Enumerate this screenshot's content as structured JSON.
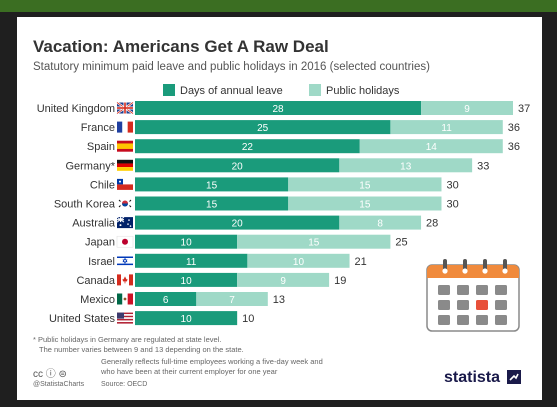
{
  "header": {
    "title": "Vacation: Americans Get A Raw Deal",
    "subtitle": "Statutory minimum paid leave and public holidays in 2016 (selected countries)"
  },
  "colors": {
    "annual_leave": "#1a9b7b",
    "public_holidays": "#9fd9c7",
    "calendar_orange": "#f08a3c",
    "calendar_gray": "#8a8a8a",
    "calendar_red": "#e8503a",
    "brand_navy": "#1a1a4a"
  },
  "chart_data": {
    "type": "bar",
    "orientation": "horizontal",
    "stacked": true,
    "title": "Vacation: Americans Get A Raw Deal",
    "subtitle": "Statutory minimum paid leave and public holidays in 2016 (selected countries)",
    "legend_position": "top",
    "categories": [
      "United Kingdom",
      "France",
      "Spain",
      "Germany*",
      "Chile",
      "South Korea",
      "Australia",
      "Japan",
      "Israel",
      "Canada",
      "Mexico",
      "United States"
    ],
    "flags": [
      "uk",
      "france",
      "spain",
      "germany",
      "chile",
      "south-korea",
      "australia",
      "japan",
      "israel",
      "canada",
      "mexico",
      "united-states"
    ],
    "series": [
      {
        "name": "Days of annual leave",
        "values": [
          28,
          25,
          22,
          20,
          15,
          15,
          20,
          10,
          11,
          10,
          6,
          10
        ]
      },
      {
        "name": "Public holidays",
        "values": [
          9,
          11,
          14,
          13,
          15,
          15,
          8,
          15,
          10,
          9,
          7,
          0
        ]
      }
    ],
    "totals": [
      37,
      36,
      36,
      33,
      30,
      30,
      28,
      25,
      21,
      19,
      13,
      10
    ],
    "xlim": [
      0,
      37
    ],
    "grid": false
  },
  "footer": {
    "footnote_line1": "* Public holidays in Germany are regulated at state level.",
    "footnote_line2": "The number varies between 9 and 13 depending on the state.",
    "note_line1": "Generally reflects full-time employees working a five-day week and",
    "note_line2": "who have been at their current employer for one year",
    "cc_label": "cc ⓘ ⊜",
    "handle": "@StatistaCharts",
    "source": "Source: OECD",
    "brand": "statista"
  },
  "icons": {
    "calendar": "calendar-icon",
    "brand_mark": "statista-logo-icon"
  }
}
